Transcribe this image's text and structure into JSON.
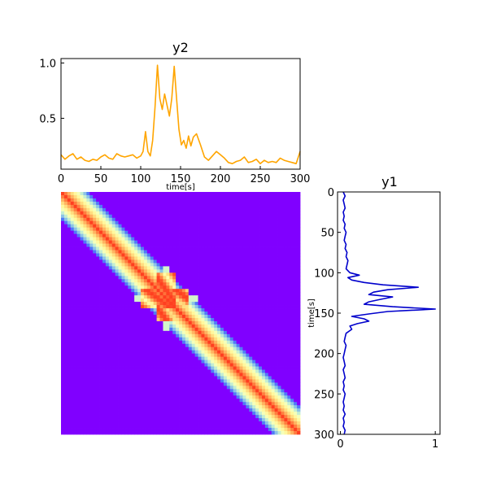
{
  "chart_data": [
    {
      "type": "line",
      "title": "y2",
      "xlabel": "time[s]",
      "ylabel": "",
      "xlim": [
        0,
        300
      ],
      "ylim": [
        0.04,
        1.04
      ],
      "xticks": [
        0,
        50,
        100,
        150,
        200,
        250,
        300
      ],
      "yticks": [
        0.5,
        1.0
      ],
      "ytick_labels": [
        "0.5",
        "1.0"
      ],
      "color": "#ffa500",
      "x": [
        0,
        5,
        10,
        15,
        20,
        25,
        30,
        35,
        40,
        45,
        50,
        55,
        60,
        65,
        70,
        75,
        80,
        85,
        90,
        95,
        100,
        103,
        106,
        109,
        112,
        115,
        118,
        121,
        124,
        127,
        130,
        133,
        136,
        139,
        142,
        145,
        148,
        151,
        154,
        157,
        160,
        163,
        166,
        170,
        175,
        180,
        185,
        190,
        195,
        200,
        205,
        210,
        215,
        220,
        225,
        230,
        235,
        240,
        245,
        250,
        255,
        260,
        265,
        270,
        275,
        280,
        285,
        290,
        295,
        300
      ],
      "values": [
        0.17,
        0.13,
        0.16,
        0.18,
        0.13,
        0.15,
        0.12,
        0.11,
        0.13,
        0.12,
        0.15,
        0.17,
        0.14,
        0.13,
        0.18,
        0.16,
        0.15,
        0.16,
        0.17,
        0.14,
        0.16,
        0.2,
        0.38,
        0.2,
        0.16,
        0.3,
        0.6,
        0.98,
        0.68,
        0.58,
        0.72,
        0.62,
        0.52,
        0.68,
        0.97,
        0.68,
        0.4,
        0.26,
        0.3,
        0.23,
        0.34,
        0.25,
        0.33,
        0.36,
        0.26,
        0.15,
        0.12,
        0.16,
        0.2,
        0.17,
        0.14,
        0.1,
        0.09,
        0.11,
        0.12,
        0.15,
        0.1,
        0.11,
        0.13,
        0.09,
        0.12,
        0.1,
        0.11,
        0.1,
        0.14,
        0.12,
        0.11,
        0.1,
        0.09,
        0.2
      ]
    },
    {
      "type": "heatmap",
      "title": "",
      "colormap": "rainbow",
      "background_color": "#8000ff",
      "band_color": "#ff5a34",
      "size": 300,
      "band_halfwidth": 20,
      "cross_center": 132
    },
    {
      "type": "line",
      "title": "y1",
      "xlabel": "",
      "ylabel": "time[s]",
      "orientation": "vertical",
      "xlim": [
        -0.03,
        1.05
      ],
      "ylim": [
        300,
        0
      ],
      "xticks": [
        0,
        1
      ],
      "yticks": [
        0,
        50,
        100,
        150,
        200,
        250,
        300
      ],
      "color": "#0000cc",
      "y": [
        0,
        5,
        10,
        15,
        20,
        25,
        30,
        35,
        40,
        45,
        50,
        55,
        60,
        65,
        70,
        75,
        80,
        85,
        90,
        95,
        100,
        103,
        106,
        109,
        112,
        115,
        118,
        121,
        124,
        127,
        130,
        133,
        136,
        139,
        142,
        145,
        148,
        151,
        154,
        157,
        160,
        163,
        166,
        170,
        175,
        180,
        185,
        190,
        195,
        200,
        205,
        210,
        215,
        220,
        225,
        230,
        235,
        240,
        245,
        250,
        255,
        260,
        265,
        270,
        275,
        280,
        285,
        290,
        295,
        300
      ],
      "values": [
        0.03,
        0.05,
        0.03,
        0.04,
        0.05,
        0.03,
        0.04,
        0.03,
        0.05,
        0.04,
        0.06,
        0.05,
        0.04,
        0.06,
        0.05,
        0.07,
        0.06,
        0.08,
        0.07,
        0.06,
        0.1,
        0.2,
        0.08,
        0.12,
        0.25,
        0.45,
        0.82,
        0.5,
        0.35,
        0.3,
        0.55,
        0.42,
        0.3,
        0.25,
        0.55,
        1.0,
        0.5,
        0.3,
        0.12,
        0.25,
        0.3,
        0.18,
        0.1,
        0.12,
        0.06,
        0.05,
        0.04,
        0.06,
        0.05,
        0.04,
        0.03,
        0.04,
        0.05,
        0.03,
        0.04,
        0.05,
        0.03,
        0.04,
        0.03,
        0.05,
        0.04,
        0.03,
        0.04,
        0.03,
        0.05,
        0.03,
        0.04,
        0.03,
        0.05,
        0.04
      ]
    }
  ]
}
